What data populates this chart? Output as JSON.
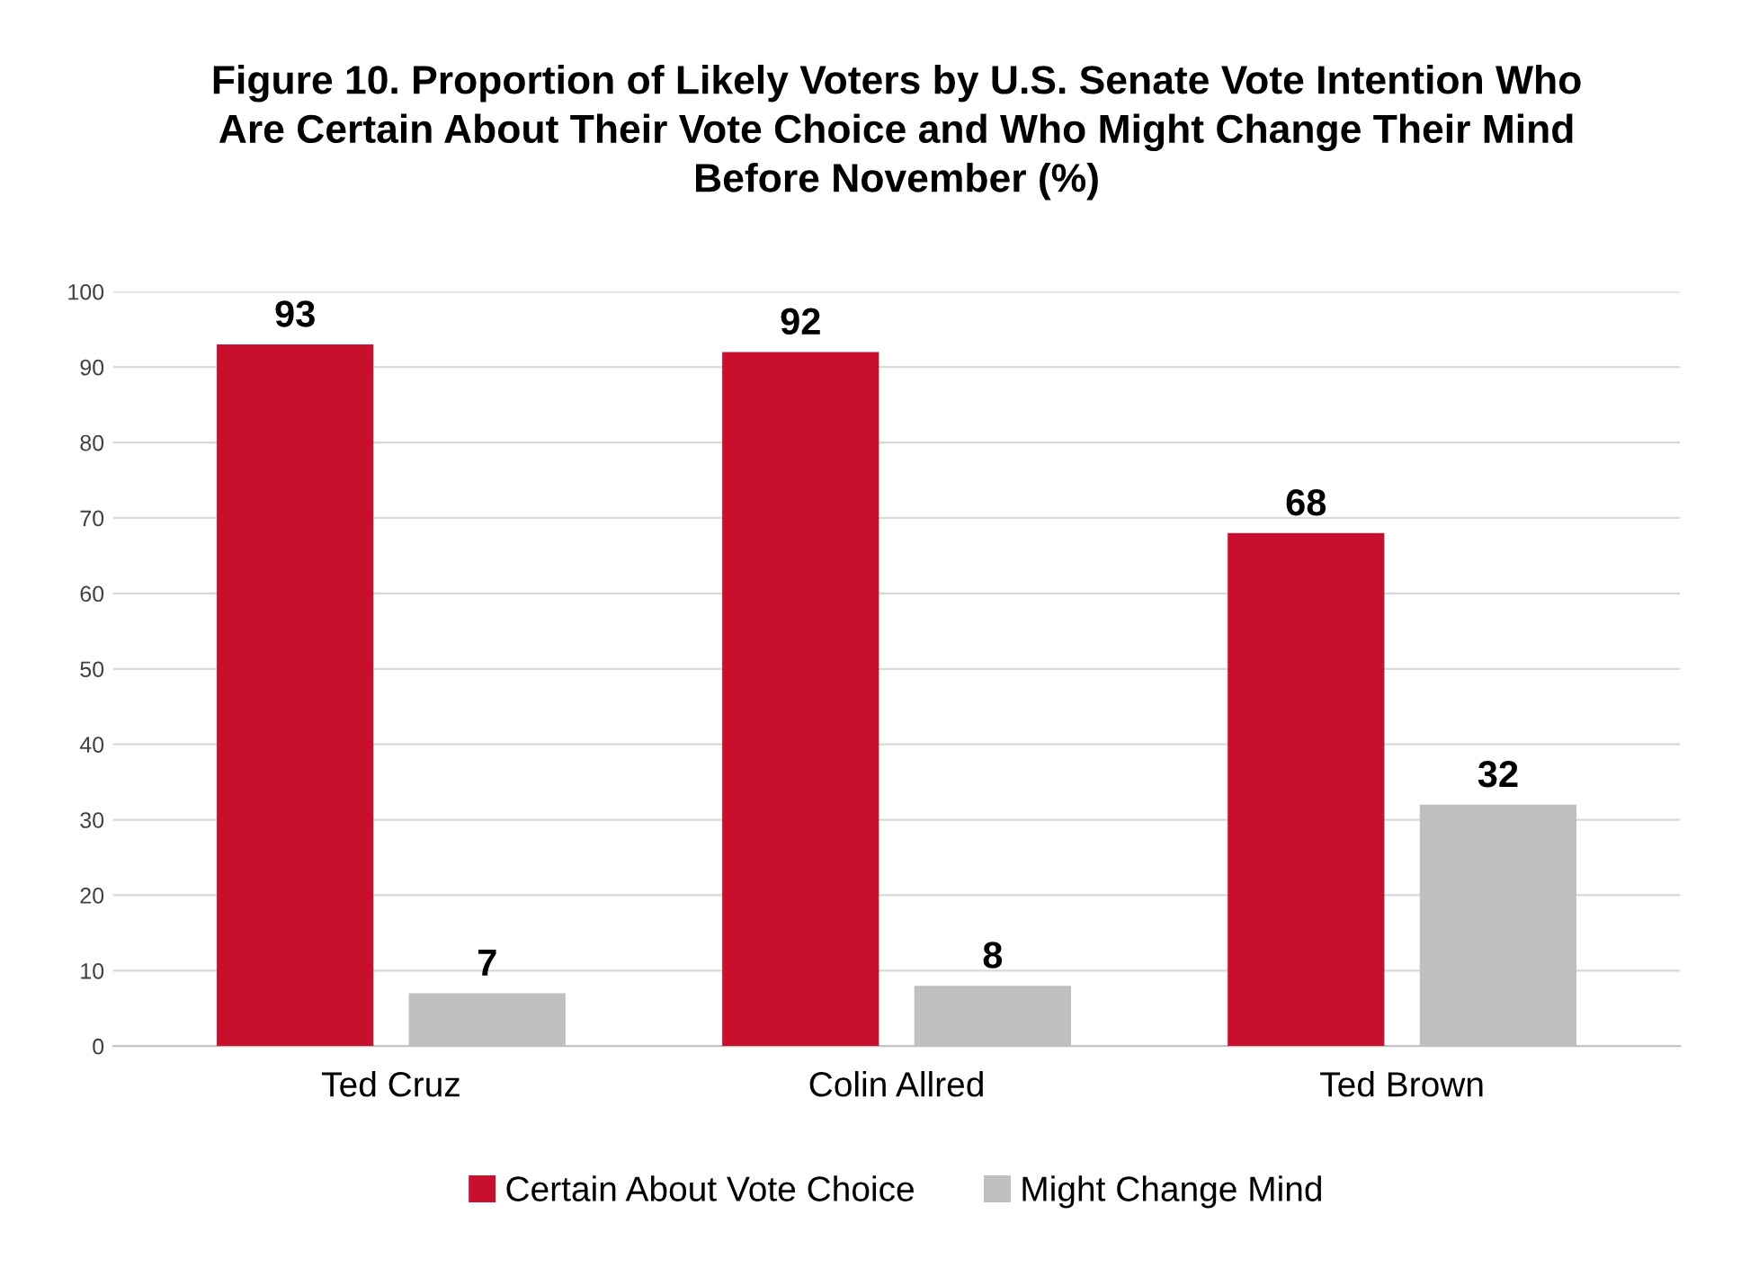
{
  "chart_data": {
    "type": "bar",
    "title": "Figure 10. Proportion of Likely Voters by U.S. Senate Vote Intention Who\nAre Certain About Their Vote Choice and Who Might Change Their Mind\nBefore November (%)",
    "categories": [
      "Ted Cruz",
      "Colin Allred",
      "Ted Brown"
    ],
    "series": [
      {
        "name": "Certain About Vote Choice",
        "color": "#c8102e",
        "values": [
          93,
          92,
          68
        ]
      },
      {
        "name": "Might Change Mind",
        "color": "#bfbfbf",
        "values": [
          7,
          8,
          32
        ]
      }
    ],
    "ylim": [
      0,
      100
    ],
    "yticks": [
      0,
      10,
      20,
      30,
      40,
      50,
      60,
      70,
      80,
      90,
      100
    ],
    "grid": "y",
    "legend": "bottom",
    "data_labels": true
  }
}
